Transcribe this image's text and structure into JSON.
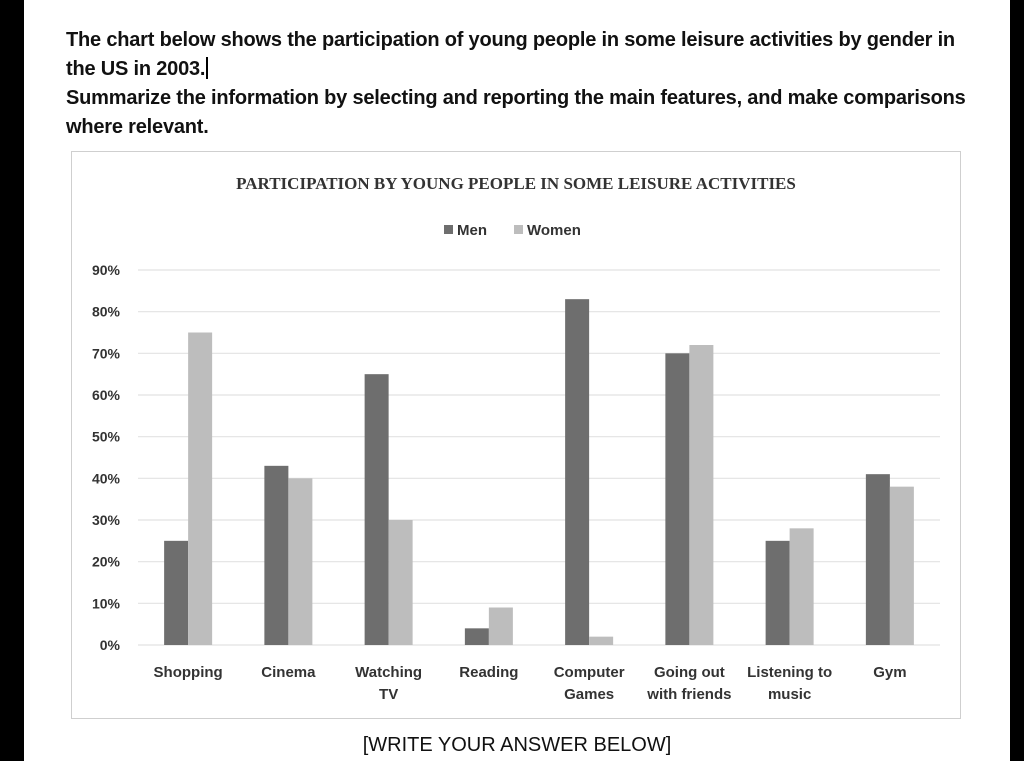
{
  "prompt": {
    "line1": "The chart below shows the participation of young people in some leisure activities by gender in the US in 2003.",
    "line2": "Summarize the information by selecting and reporting the main features, and make comparisons where relevant."
  },
  "footer": "[WRITE YOUR ANSWER BELOW]",
  "chart_data": {
    "type": "bar",
    "title": "PARTICIPATION BY YOUNG PEOPLE IN SOME LEISURE ACTIVITIES",
    "categories": [
      "Shopping",
      "Cinema",
      "Watching TV",
      "Reading",
      "Computer Games",
      "Going out with friends",
      "Listening to music",
      "Gym"
    ],
    "category_lines": [
      [
        "Shopping"
      ],
      [
        "Cinema"
      ],
      [
        "Watching",
        "TV"
      ],
      [
        "Reading"
      ],
      [
        "Computer",
        "Games"
      ],
      [
        "Going out",
        "with friends"
      ],
      [
        "Listening to",
        "music"
      ],
      [
        "Gym"
      ]
    ],
    "series": [
      {
        "name": "Men",
        "color": "#6e6e6e",
        "values": [
          25,
          43,
          65,
          4,
          83,
          70,
          25,
          41
        ]
      },
      {
        "name": "Women",
        "color": "#bdbdbd",
        "values": [
          75,
          40,
          30,
          9,
          2,
          72,
          28,
          38
        ]
      }
    ],
    "yticks": [
      "0%",
      "10%",
      "20%",
      "30%",
      "40%",
      "50%",
      "60%",
      "70%",
      "80%",
      "90%"
    ],
    "ylim": [
      0,
      90
    ],
    "grid": true,
    "legend_position": "top-center"
  }
}
